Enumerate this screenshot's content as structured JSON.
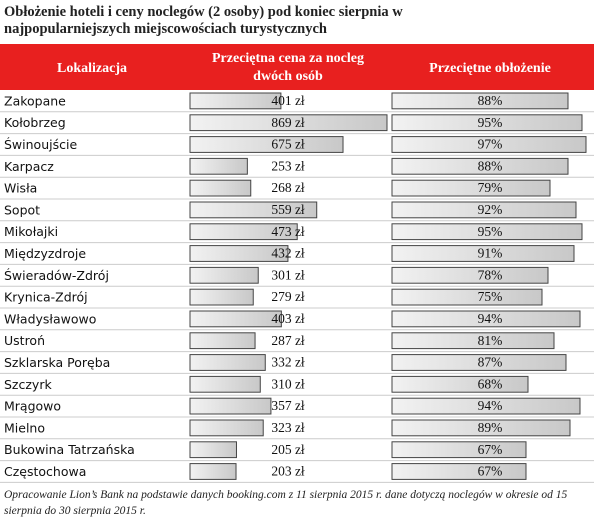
{
  "chart_data": {
    "type": "table-bars",
    "title": "Obłożenie hoteli i ceny noclegów (2 osoby) pod koniec sierpnia w najpopularniejszych miejscowościach turystycznych",
    "category_header": "Lokalizacja",
    "categories": [
      "Zakopane",
      "Kołobrzeg",
      "Świnoujście",
      "Karpacz",
      "Wisła",
      "Sopot",
      "Mikołajki",
      "Międzyzdroje",
      "Świeradów-Zdrój",
      "Krynica-Zdrój",
      "Władysławowo",
      "Ustroń",
      "Szklarska Poręba",
      "Szczyrk",
      "Mrągowo",
      "Mielno",
      "Bukowina Tatrzańska",
      "Częstochowa"
    ],
    "series": [
      {
        "name": "Przeciętna cena za nocleg dwóch osób",
        "color": "#d9d9d9",
        "values": [
          401,
          869,
          675,
          253,
          268,
          559,
          473,
          432,
          301,
          279,
          403,
          287,
          332,
          310,
          357,
          323,
          205,
          203
        ],
        "value_labels": [
          "401 zł",
          "869 zł",
          "675 zł",
          "253 zł",
          "268 zł",
          "559 zł",
          "473 zł",
          "432 zł",
          "301 zł",
          "279 zł",
          "403 zł",
          "287 zł",
          "332 zł",
          "310 zł",
          "357 zł",
          "323 zł",
          "205 zł",
          "203 zł"
        ]
      },
      {
        "name": "Przeciętne obłożenie",
        "color": "#d9d9d9",
        "values": [
          88,
          95,
          97,
          88,
          79,
          92,
          95,
          91,
          78,
          75,
          94,
          81,
          87,
          68,
          94,
          89,
          67,
          67
        ],
        "value_labels": [
          "88%",
          "95%",
          "97%",
          "88%",
          "79%",
          "92%",
          "95%",
          "91%",
          "78%",
          "75%",
          "94%",
          "81%",
          "87%",
          "68%",
          "94%",
          "89%",
          "67%",
          "67%"
        ]
      }
    ],
    "note": "Opracowanie Lion’s Bank na podstawie danych booking.com z 11 sierpnia 2015 r. dane dotyczą noclegów w okresie od 15 sierpnia do 30 sierpnia 2015 r."
  }
}
